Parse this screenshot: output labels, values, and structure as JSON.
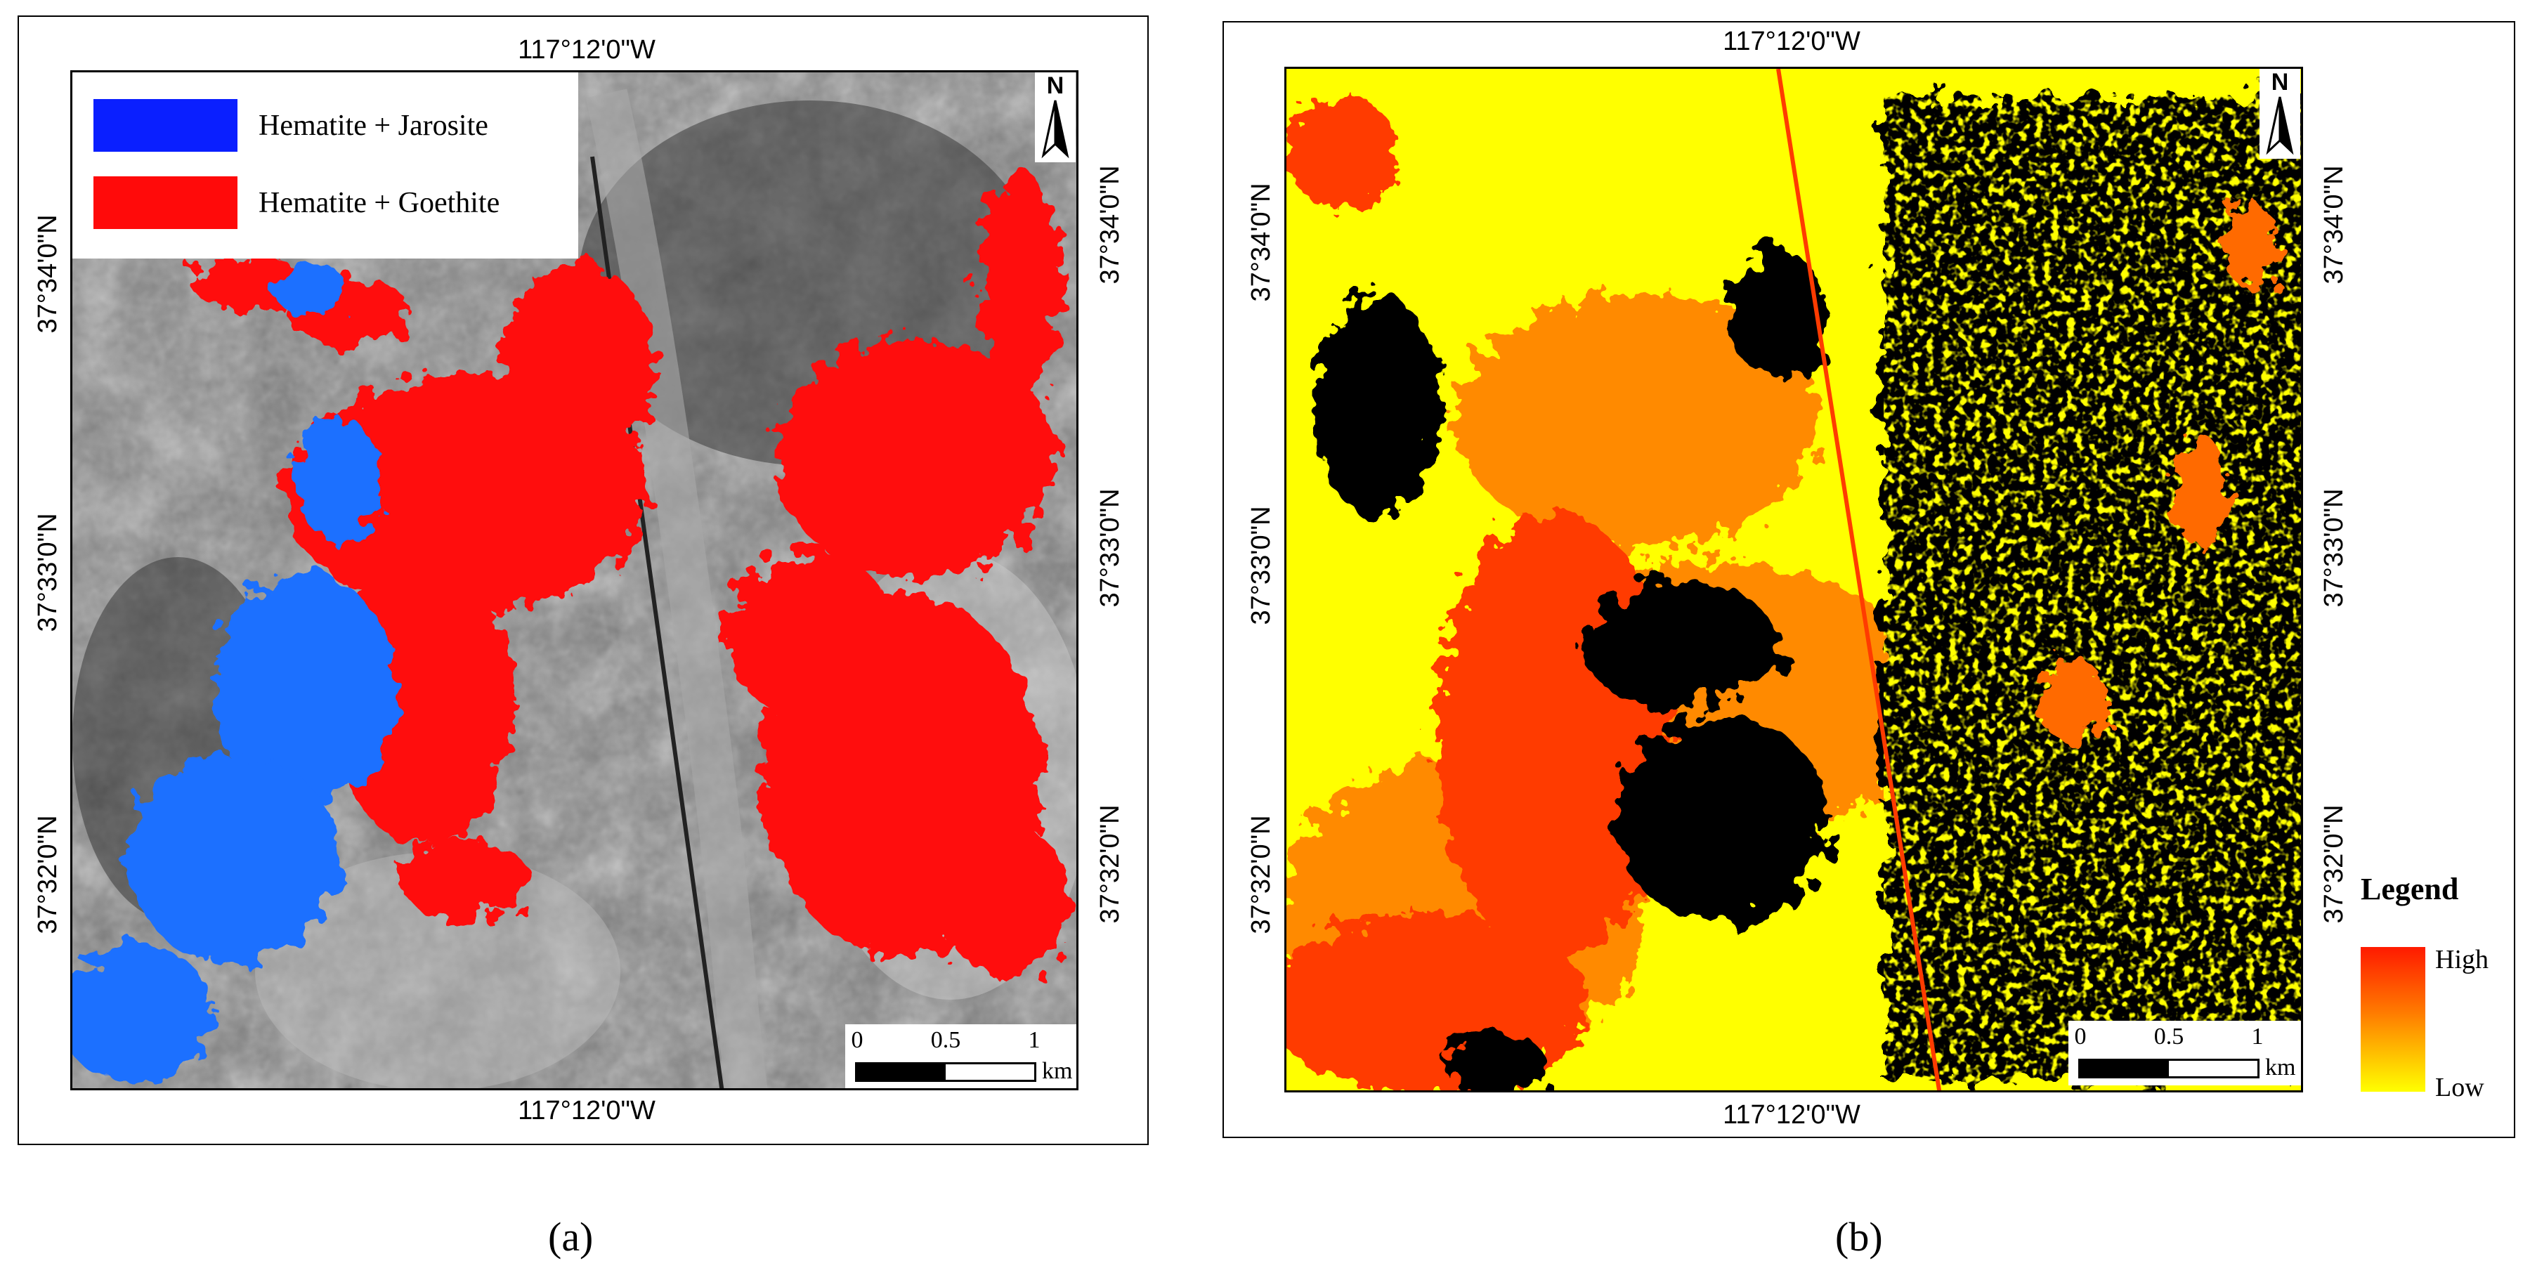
{
  "panels": [
    {
      "id": "a",
      "caption": "(a)",
      "top_label": "117°12'0\"W",
      "bottom_label": "117°12'0\"W",
      "left_labels": [
        "37°34'0\"N",
        "37°33'0\"N",
        "37°32'0\"N"
      ],
      "right_labels": [
        "37°34'0\"N",
        "37°33'0\"N",
        "37°32'0\"N"
      ],
      "legend": [
        {
          "label": "Hematite + Jarosite",
          "color": "#0a1fff"
        },
        {
          "label": "Hematite + Goethite",
          "color": "#ff0a0a"
        }
      ],
      "north": "N",
      "scale": {
        "ticks": [
          "0",
          "0.5",
          "1"
        ],
        "unit": "km"
      }
    },
    {
      "id": "b",
      "caption": "(b)",
      "top_label": "117°12'0\"W",
      "bottom_label": "117°12'0\"W",
      "left_labels": [
        "37°34'0\"N",
        "37°33'0\"N",
        "37°32'0\"N"
      ],
      "right_labels": [
        "37°34'0\"N",
        "37°33'0\"N",
        "37°32'0\"N"
      ],
      "north": "N",
      "scale": {
        "ticks": [
          "0",
          "0.5",
          "1"
        ],
        "unit": "km"
      },
      "legend": {
        "title": "Legend",
        "high": "High",
        "low": "Low",
        "high_color": "#ff1a00",
        "low_color": "#ffff00"
      }
    }
  ]
}
